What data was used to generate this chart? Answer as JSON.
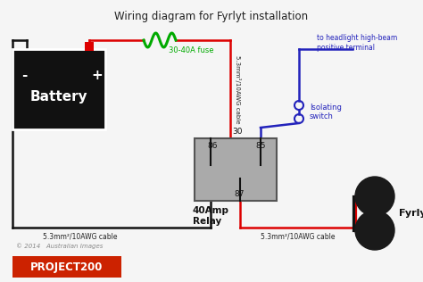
{
  "title": "Wiring diagram for Fyrlyt installation",
  "bg_color": "#f5f5f5",
  "battery_color": "#111111",
  "relay_color": "#aaaaaa",
  "fuse_label": "30-40A fuse",
  "cable_label_vert": "5.3mm²/10AWG cable",
  "cable_label_horiz_bottom": "5.3mm²/10AWG cable",
  "cable_label_left_bottom": "5.3mm²/10AWG cable",
  "relay_label": "40Amp\nRelay",
  "headlight_label": "to headlight high-beam\npositive terminal",
  "switch_label": "Isolating\nswitch",
  "fyrlyts_label": "Fyrlyts",
  "battery_minus": "-",
  "battery_plus": "+",
  "battery_text": "Battery",
  "pin_86": "86",
  "pin_85": "85",
  "pin_30": "30",
  "pin_87": "87",
  "wire_red": "#dd0000",
  "wire_black": "#111111",
  "wire_blue": "#2222bb",
  "wire_green": "#00aa00",
  "text_color_blue": "#2222bb",
  "text_color_green": "#007700",
  "text_color_black": "#222222",
  "logo_text": "© 2014   Australian Images",
  "copyright_color": "#888888",
  "lw": 1.8
}
